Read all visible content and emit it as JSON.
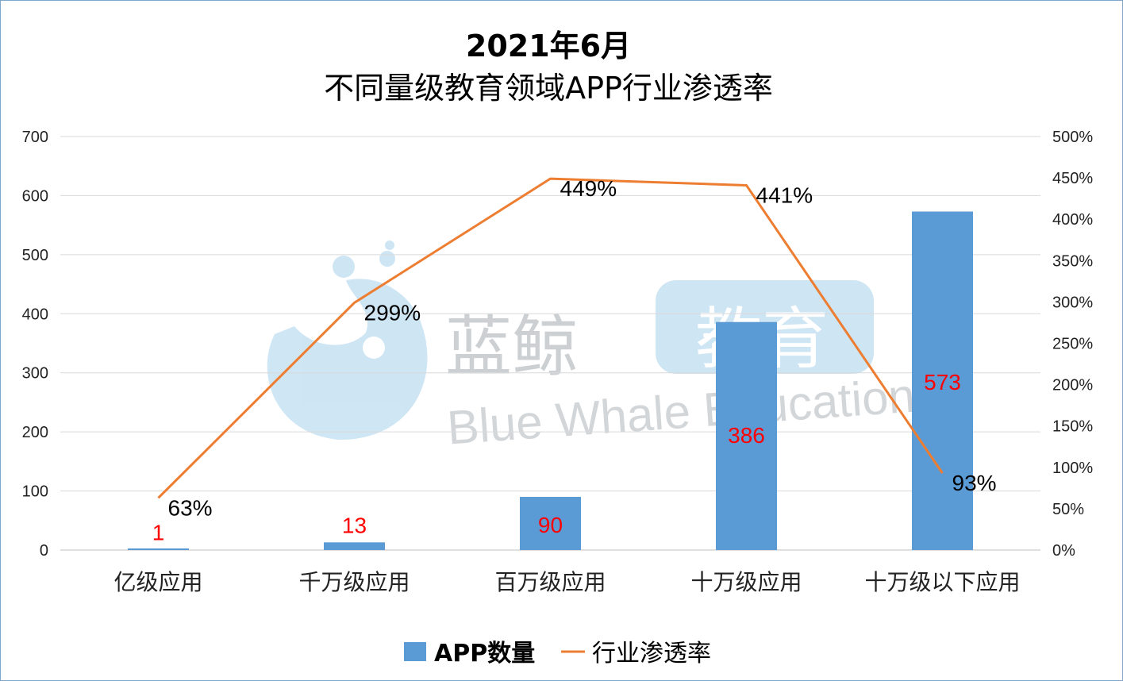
{
  "chart_data": {
    "type": "bar",
    "title_line1": "2021年6月",
    "title_line2": "不同量级教育领域APP行业渗透率",
    "categories": [
      "亿级应用",
      "千万级应用",
      "百万级应用",
      "十万级应用",
      "十万级以下应用"
    ],
    "series": [
      {
        "name": "APP数量",
        "type": "bar",
        "axis": "left",
        "color": "#5b9bd5",
        "values": [
          1,
          13,
          90,
          386,
          573
        ],
        "labels": [
          "1",
          "13",
          "90",
          "386",
          "573"
        ]
      },
      {
        "name": "行业渗透率",
        "type": "line",
        "axis": "right",
        "color": "#ed7d31",
        "values": [
          63,
          299,
          449,
          441,
          93
        ],
        "labels": [
          "63%",
          "299%",
          "449%",
          "441%",
          "93%"
        ]
      }
    ],
    "y_left": {
      "min": 0,
      "max": 700,
      "ticks": [
        "0",
        "100",
        "200",
        "300",
        "400",
        "500",
        "600",
        "700"
      ]
    },
    "y_right": {
      "min": 0,
      "max": 500,
      "ticks": [
        "0%",
        "50%",
        "100%",
        "150%",
        "200%",
        "250%",
        "300%",
        "350%",
        "400%",
        "450%",
        "500%"
      ]
    },
    "grid": true,
    "legend_position": "bottom",
    "bar_label_color": "#ff0000"
  },
  "watermark": {
    "text_cn_1": "蓝鲸",
    "text_cn_2": "教育",
    "text_en": "Blue Whale Education",
    "color": "#9fcdeb"
  }
}
